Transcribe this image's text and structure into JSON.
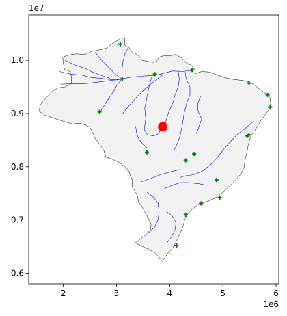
{
  "chart_data": {
    "type": "scatter",
    "title": "",
    "xlabel": "",
    "ylabel": "",
    "xlim": [
      1350000,
      6050000
    ],
    "ylim": [
      5800000,
      10850000
    ],
    "x_ticks": [
      2000000,
      3000000,
      4000000,
      5000000,
      6000000
    ],
    "x_tick_labels": [
      "2",
      "3",
      "4",
      "5",
      "6"
    ],
    "y_ticks": [
      6000000,
      7000000,
      8000000,
      9000000,
      10000000
    ],
    "y_tick_labels": [
      "0.6",
      "0.7",
      "0.8",
      "0.9",
      "1.0"
    ],
    "x_offset_label": "1e6",
    "y_offset_label": "1e7",
    "grid": false,
    "legend": "none",
    "colors": {
      "country_fill": "#f2f2f2",
      "country_edge": "#000000",
      "rivers": "#0000ff",
      "markers": "#008000",
      "highlight": "#ff0000"
    },
    "country_outline": [
      [
        3030000,
        10380000
      ],
      [
        3080000,
        10420000
      ],
      [
        3150000,
        10410000
      ],
      [
        3160000,
        10280000
      ],
      [
        3240000,
        10230000
      ],
      [
        3300000,
        10150000
      ],
      [
        3380000,
        10110000
      ],
      [
        3450000,
        10060000
      ],
      [
        3480000,
        10000000
      ],
      [
        3580000,
        9980000
      ],
      [
        3680000,
        9960000
      ],
      [
        3750000,
        9980000
      ],
      [
        3800000,
        10060000
      ],
      [
        3900000,
        10090000
      ],
      [
        4020000,
        10080000
      ],
      [
        4100000,
        10110000
      ],
      [
        4230000,
        10040000
      ],
      [
        4310000,
        9950000
      ],
      [
        4400000,
        9910000
      ],
      [
        4470000,
        9830000
      ],
      [
        4480000,
        9750000
      ],
      [
        4600000,
        9790000
      ],
      [
        4750000,
        9780000
      ],
      [
        4900000,
        9720000
      ],
      [
        5050000,
        9670000
      ],
      [
        5200000,
        9640000
      ],
      [
        5380000,
        9620000
      ],
      [
        5500000,
        9590000
      ],
      [
        5600000,
        9530000
      ],
      [
        5700000,
        9450000
      ],
      [
        5800000,
        9380000
      ],
      [
        5880000,
        9300000
      ],
      [
        5900000,
        9200000
      ],
      [
        5880000,
        9100000
      ],
      [
        5800000,
        8980000
      ],
      [
        5720000,
        8880000
      ],
      [
        5660000,
        8780000
      ],
      [
        5600000,
        8680000
      ],
      [
        5540000,
        8600000
      ],
      [
        5500000,
        8500000
      ],
      [
        5470000,
        8380000
      ],
      [
        5450000,
        8260000
      ],
      [
        5420000,
        8140000
      ],
      [
        5400000,
        8000000
      ],
      [
        5350000,
        7880000
      ],
      [
        5250000,
        7760000
      ],
      [
        5100000,
        7610000
      ],
      [
        4950000,
        7480000
      ],
      [
        4850000,
        7410000
      ],
      [
        4720000,
        7350000
      ],
      [
        4550000,
        7300000
      ],
      [
        4420000,
        7200000
      ],
      [
        4330000,
        7100000
      ],
      [
        4280000,
        7000000
      ],
      [
        4250000,
        6880000
      ],
      [
        4200000,
        6760000
      ],
      [
        4150000,
        6650000
      ],
      [
        4100000,
        6550000
      ],
      [
        4050000,
        6470000
      ],
      [
        3980000,
        6390000
      ],
      [
        3920000,
        6310000
      ],
      [
        3860000,
        6220000
      ],
      [
        3800000,
        6300000
      ],
      [
        3720000,
        6380000
      ],
      [
        3600000,
        6450000
      ],
      [
        3450000,
        6520000
      ],
      [
        3350000,
        6570000
      ],
      [
        3450000,
        6640000
      ],
      [
        3550000,
        6720000
      ],
      [
        3640000,
        6820000
      ],
      [
        3650000,
        6920000
      ],
      [
        3600000,
        7030000
      ],
      [
        3530000,
        7150000
      ],
      [
        3480000,
        7250000
      ],
      [
        3410000,
        7340000
      ],
      [
        3400000,
        7440000
      ],
      [
        3350000,
        7540000
      ],
      [
        3290000,
        7620000
      ],
      [
        3300000,
        7740000
      ],
      [
        3260000,
        7840000
      ],
      [
        3220000,
        7940000
      ],
      [
        3130000,
        8020000
      ],
      [
        3050000,
        8080000
      ],
      [
        2920000,
        8140000
      ],
      [
        2800000,
        8180000
      ],
      [
        2760000,
        8310000
      ],
      [
        2700000,
        8400000
      ],
      [
        2600000,
        8530000
      ],
      [
        2550000,
        8640000
      ],
      [
        2500000,
        8740000
      ],
      [
        2430000,
        8780000
      ],
      [
        2300000,
        8820000
      ],
      [
        2180000,
        8800000
      ],
      [
        2080000,
        8830000
      ],
      [
        1950000,
        8870000
      ],
      [
        1800000,
        8920000
      ],
      [
        1650000,
        8970000
      ],
      [
        1550000,
        9040000
      ],
      [
        1560000,
        9150000
      ],
      [
        1620000,
        9230000
      ],
      [
        1700000,
        9320000
      ],
      [
        1800000,
        9420000
      ],
      [
        1900000,
        9480000
      ],
      [
        2030000,
        9500000
      ],
      [
        2150000,
        9560000
      ],
      [
        2150000,
        9700000
      ],
      [
        2120000,
        9790000
      ],
      [
        2020000,
        9830000
      ],
      [
        2000000,
        9950000
      ],
      [
        1990000,
        10060000
      ],
      [
        2100000,
        10100000
      ],
      [
        2250000,
        10120000
      ],
      [
        2400000,
        10110000
      ],
      [
        2550000,
        10170000
      ],
      [
        2700000,
        10200000
      ],
      [
        2820000,
        10230000
      ],
      [
        2900000,
        10300000
      ]
    ],
    "rivers": [
      [
        [
          1930000,
          9790000
        ],
        [
          2150000,
          9740000
        ],
        [
          2360000,
          9720000
        ],
        [
          2500000,
          9680000
        ],
        [
          2700000,
          9660000
        ],
        [
          2880000,
          9640000
        ],
        [
          3000000,
          9630000
        ],
        [
          3100000,
          9650000
        ],
        [
          3250000,
          9680000
        ],
        [
          3450000,
          9700000
        ],
        [
          3600000,
          9710000
        ],
        [
          3750000,
          9720000
        ],
        [
          3900000,
          9760000
        ],
        [
          4050000,
          9800000
        ],
        [
          4250000,
          9790000
        ],
        [
          4400000,
          9810000
        ]
      ],
      [
        [
          1950000,
          9550000
        ],
        [
          2150000,
          9560000
        ],
        [
          2400000,
          9560000
        ],
        [
          2650000,
          9590000
        ],
        [
          2900000,
          9620000
        ],
        [
          3100000,
          9650000
        ]
      ],
      [
        [
          2030000,
          10000000
        ],
        [
          2200000,
          9920000
        ],
        [
          2400000,
          9850000
        ],
        [
          2550000,
          9780000
        ],
        [
          2700000,
          9720000
        ],
        [
          2880000,
          9660000
        ]
      ],
      [
        [
          2600000,
          10150000
        ],
        [
          2720000,
          10000000
        ],
        [
          2850000,
          9870000
        ],
        [
          3000000,
          9720000
        ],
        [
          3100000,
          9650000
        ]
      ],
      [
        [
          3230000,
          10260000
        ],
        [
          3160000,
          10120000
        ],
        [
          3120000,
          9970000
        ],
        [
          3100000,
          9800000
        ],
        [
          3100000,
          9650000
        ]
      ],
      [
        [
          3100000,
          9650000
        ],
        [
          3000000,
          9520000
        ],
        [
          2900000,
          9350000
        ],
        [
          2800000,
          9200000
        ],
        [
          2700000,
          9040000
        ]
      ],
      [
        [
          3860000,
          9720000
        ],
        [
          3680000,
          9580000
        ],
        [
          3520000,
          9450000
        ],
        [
          3380000,
          9310000
        ],
        [
          3230000,
          9140000
        ],
        [
          3110000,
          8990000
        ]
      ],
      [
        [
          4160000,
          9800000
        ],
        [
          4180000,
          9650000
        ],
        [
          4160000,
          9500000
        ],
        [
          4100000,
          9350000
        ],
        [
          4060000,
          9200000
        ],
        [
          3990000,
          9050000
        ],
        [
          3940000,
          8900000
        ],
        [
          3900000,
          8750000
        ]
      ],
      [
        [
          4290000,
          9780000
        ],
        [
          4310000,
          9650000
        ],
        [
          4380000,
          9500000
        ],
        [
          4380000,
          9350000
        ],
        [
          4320000,
          9200000
        ],
        [
          4270000,
          9000000
        ],
        [
          4240000,
          8800000
        ],
        [
          4200000,
          8600000
        ],
        [
          4150000,
          8450000
        ],
        [
          4080000,
          8300000
        ]
      ],
      [
        [
          3660000,
          9680000
        ],
        [
          3610000,
          9500000
        ],
        [
          3570000,
          9300000
        ],
        [
          3530000,
          9100000
        ],
        [
          3550000,
          8900000
        ],
        [
          3520000,
          8700000
        ],
        [
          3580000,
          8600000
        ],
        [
          3700000,
          8580000
        ],
        [
          3790000,
          8620000
        ],
        [
          3830000,
          8700000
        ]
      ],
      [
        [
          3360000,
          8760000
        ],
        [
          3380000,
          8620000
        ],
        [
          3420000,
          8520000
        ],
        [
          3500000,
          8420000
        ],
        [
          3580000,
          8350000
        ]
      ],
      [
        [
          4580000,
          9320000
        ],
        [
          4530000,
          9200000
        ],
        [
          4530000,
          9050000
        ],
        [
          4600000,
          8900000
        ],
        [
          4550000,
          8750000
        ],
        [
          4500000,
          8620000
        ]
      ],
      [
        [
          5570000,
          8850000
        ],
        [
          5400000,
          8700000
        ],
        [
          5260000,
          8600000
        ],
        [
          5150000,
          8480000
        ],
        [
          5030000,
          8350000
        ],
        [
          4900000,
          8180000
        ],
        [
          4780000,
          8050000
        ]
      ],
      [
        [
          4780000,
          8050000
        ],
        [
          4620000,
          7920000
        ],
        [
          4450000,
          7850000
        ],
        [
          4300000,
          7830000
        ],
        [
          4200000,
          7800000
        ]
      ],
      [
        [
          3470000,
          7720000
        ],
        [
          3650000,
          7780000
        ],
        [
          3820000,
          7850000
        ],
        [
          4000000,
          7900000
        ],
        [
          4200000,
          7950000
        ]
      ],
      [
        [
          3900000,
          7590000
        ],
        [
          4050000,
          7650000
        ],
        [
          4200000,
          7700000
        ],
        [
          4350000,
          7700000
        ],
        [
          4550000,
          7680000
        ],
        [
          4700000,
          7650000
        ]
      ],
      [
        [
          3550000,
          7540000
        ],
        [
          3670000,
          7450000
        ],
        [
          3780000,
          7320000
        ],
        [
          3800000,
          7150000
        ],
        [
          3780000,
          7000000
        ],
        [
          3710000,
          6860000
        ],
        [
          3600000,
          6760000
        ]
      ],
      [
        [
          3930000,
          7170000
        ],
        [
          4050000,
          7070000
        ],
        [
          4120000,
          6950000
        ],
        [
          4100000,
          6820000
        ],
        [
          4030000,
          6680000
        ],
        [
          3940000,
          6560000
        ]
      ]
    ],
    "points": [
      {
        "x": 3070000,
        "y": 10300000
      },
      {
        "x": 3110000,
        "y": 9650000
      },
      {
        "x": 3720000,
        "y": 9740000
      },
      {
        "x": 4420000,
        "y": 9820000
      },
      {
        "x": 2680000,
        "y": 9030000
      },
      {
        "x": 5490000,
        "y": 9570000
      },
      {
        "x": 5840000,
        "y": 9350000
      },
      {
        "x": 5890000,
        "y": 9120000
      },
      {
        "x": 3570000,
        "y": 8270000
      },
      {
        "x": 4460000,
        "y": 8240000
      },
      {
        "x": 4300000,
        "y": 8120000
      },
      {
        "x": 5460000,
        "y": 8580000
      },
      {
        "x": 5490000,
        "y": 8600000
      },
      {
        "x": 4880000,
        "y": 7750000
      },
      {
        "x": 4940000,
        "y": 7420000
      },
      {
        "x": 4590000,
        "y": 7310000
      },
      {
        "x": 4300000,
        "y": 7100000
      },
      {
        "x": 4130000,
        "y": 6520000
      }
    ],
    "highlight_point": {
      "x": 3870000,
      "y": 8750000
    }
  }
}
